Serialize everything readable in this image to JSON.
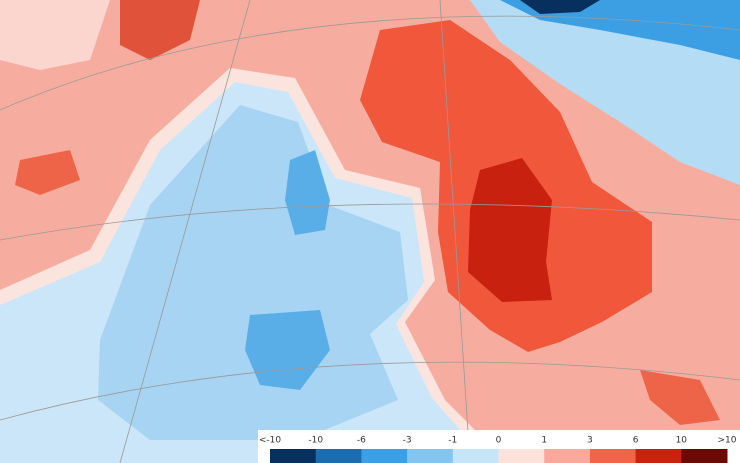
{
  "legend": {
    "labels": [
      "<-10",
      "-10",
      "-6",
      "-3",
      "-1",
      "0",
      "1",
      "3",
      "6",
      "10",
      ">10"
    ],
    "colors": [
      "#08305e",
      "#1c6cb0",
      "#3d9fe3",
      "#84c5f0",
      "#c6e5f8",
      "#fde2dc",
      "#f8a99c",
      "#f1644a",
      "#c9230f",
      "#6a0a05"
    ]
  }
}
